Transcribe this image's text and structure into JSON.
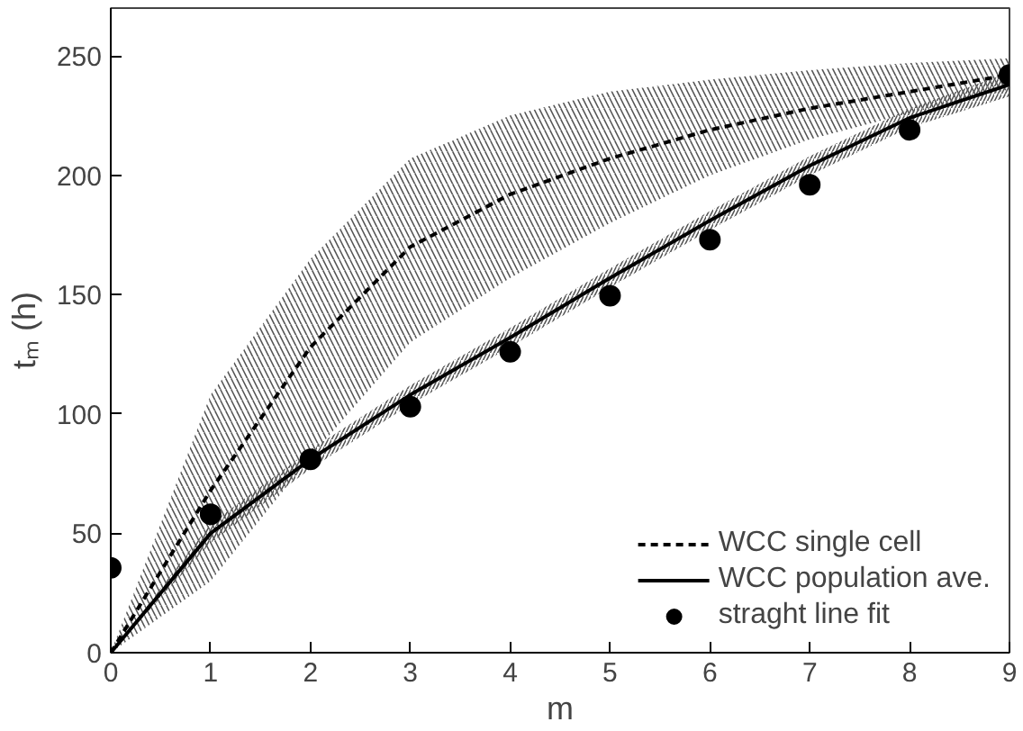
{
  "chart_data": {
    "type": "line",
    "xlabel": "m",
    "ylabel": "tₘ (h)",
    "xlim": [
      0,
      9
    ],
    "ylim": [
      0,
      270
    ],
    "xticks": [
      0,
      1,
      2,
      3,
      4,
      5,
      6,
      7,
      8,
      9
    ],
    "yticks": [
      0,
      50,
      100,
      150,
      200,
      250
    ],
    "grid": false,
    "legend": "bottom right",
    "series": [
      {
        "name": "WCC single cell",
        "line_style": "dashed",
        "color": "#000000",
        "x": [
          0,
          1,
          2,
          3,
          4,
          5,
          6,
          7,
          8,
          9
        ],
        "values": [
          0,
          68,
          128,
          170,
          192,
          207,
          219,
          228,
          235,
          242
        ],
        "lower": [
          0,
          30,
          82,
          130,
          157,
          180,
          200,
          215,
          226,
          236
        ],
        "upper": [
          0,
          108,
          165,
          207,
          225,
          235,
          240,
          244,
          247,
          249
        ]
      },
      {
        "name": "WCC population ave.",
        "line_style": "solid",
        "color": "#000000",
        "x": [
          0,
          1,
          2,
          3,
          4,
          5,
          6,
          7,
          8,
          9
        ],
        "values": [
          0,
          50,
          81,
          108,
          132,
          157,
          181,
          204,
          224,
          238
        ],
        "lower": [
          0,
          46,
          77,
          104,
          128,
          153,
          177,
          200,
          220,
          233
        ],
        "upper": [
          0,
          54,
          85,
          112,
          136,
          161,
          185,
          208,
          228,
          243
        ]
      },
      {
        "name": "straght line fit",
        "type": "scatter",
        "marker": "circle",
        "color": "#000000",
        "x": [
          0,
          1,
          2,
          3,
          4,
          5,
          6,
          7,
          8,
          9
        ],
        "values": [
          35.5,
          58,
          81,
          103,
          126,
          149.5,
          173,
          196,
          219,
          242
        ]
      }
    ]
  }
}
